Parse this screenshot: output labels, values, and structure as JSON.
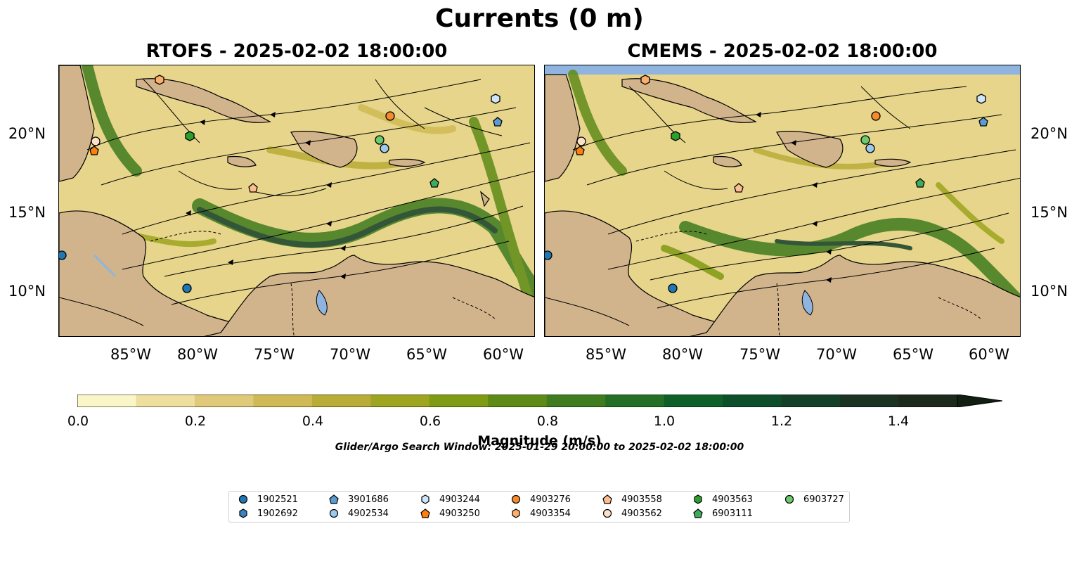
{
  "title": "Currents (0 m)",
  "panels": [
    {
      "title": "RTOFS - 2025-02-02 18:00:00"
    },
    {
      "title": "CMEMS - 2025-02-02 18:00:00"
    }
  ],
  "lon_labels": [
    "85°W",
    "80°W",
    "75°W",
    "70°W",
    "65°W",
    "60°W"
  ],
  "lat_labels": [
    "20°N",
    "15°N",
    "10°N"
  ],
  "colorbar": {
    "label": "Magnitude (m/s)",
    "ticks": [
      "0.0",
      "0.2",
      "0.4",
      "0.6",
      "0.8",
      "1.0",
      "1.2",
      "1.4"
    ],
    "colors": [
      "#fbf6c8",
      "#eedf9f",
      "#e0c979",
      "#d0ba55",
      "#b9ac37",
      "#9ea51e",
      "#7f9a13",
      "#5e8a17",
      "#3f7b1f",
      "#256e25",
      "#0f5f2a",
      "#0d4f2a",
      "#14402a",
      "#1c3322",
      "#1b2a1a",
      "#121e12"
    ],
    "min": 0.0,
    "max": 1.5,
    "extend": "max"
  },
  "search_window": "Glider/Argo Search Window: 2025-01-29 20:00:00 to 2025-02-02 18:00:00",
  "legend": [
    {
      "id": "1902521",
      "color": "#1f77b4",
      "marker": "circle"
    },
    {
      "id": "1902692",
      "color": "#3b82bf",
      "marker": "hexagon"
    },
    {
      "id": "3901686",
      "color": "#5a9bd4",
      "marker": "pentagon"
    },
    {
      "id": "4902534",
      "color": "#9cc9ec",
      "marker": "circle"
    },
    {
      "id": "4903244",
      "color": "#cfe6f8",
      "marker": "hexagon"
    },
    {
      "id": "4903250",
      "color": "#ff7f0e",
      "marker": "pentagon"
    },
    {
      "id": "4903276",
      "color": "#f58a2e",
      "marker": "circle"
    },
    {
      "id": "4903354",
      "color": "#fdae6b",
      "marker": "hexagon"
    },
    {
      "id": "4903558",
      "color": "#fdbf8f",
      "marker": "pentagon"
    },
    {
      "id": "4903562",
      "color": "#fde0c8",
      "marker": "circle"
    },
    {
      "id": "4903563",
      "color": "#2ca02c",
      "marker": "hexagon"
    },
    {
      "id": "6903111",
      "color": "#41ab5d",
      "marker": "pentagon"
    },
    {
      "id": "6903727",
      "color": "#6bcc6b",
      "marker": "circle"
    }
  ],
  "colors": {
    "land": "#d1b48c",
    "lake": "#8fb4df",
    "ocean_base": "#e6d58a"
  }
}
